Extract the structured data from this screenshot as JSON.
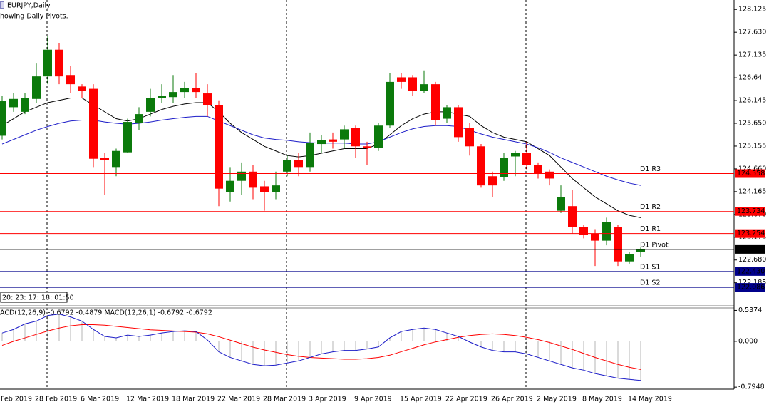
{
  "chart_data": [
    {
      "type": "candlestick",
      "title": "EURJPY,Daily",
      "subtitle": "howing Daily Pivots.",
      "countdown": "20: 23: 17: 18: 01:50",
      "categories": [
        "Feb 2019",
        null,
        null,
        "28 Feb 2019",
        null,
        null,
        null,
        "6 Mar 2019",
        null,
        null,
        null,
        "12 Mar 2019",
        null,
        null,
        null,
        "18 Mar 2019",
        null,
        null,
        null,
        "22 Mar 2019",
        null,
        null,
        null,
        "28 Mar 2019",
        null,
        null,
        null,
        "3 Apr 2019",
        null,
        null,
        null,
        "9 Apr 2019",
        null,
        null,
        null,
        "15 Apr 2019",
        null,
        null,
        null,
        "22 Apr 2019",
        null,
        null,
        null,
        "26 Apr 2019",
        null,
        null,
        null,
        "2 May 2019",
        null,
        null,
        null,
        "8 May 2019",
        null,
        null,
        null,
        "14 May 2019",
        null
      ],
      "open": [
        125.38,
        126.0,
        125.9,
        126.18,
        126.67,
        127.25,
        126.7,
        126.45,
        126.4,
        124.9,
        124.7,
        125.02,
        125.65,
        125.9,
        126.2,
        126.22,
        126.33,
        126.42,
        126.3,
        126.05,
        124.15,
        124.4,
        124.6,
        124.28,
        124.15,
        124.6,
        124.85,
        124.7,
        125.2,
        125.3,
        125.3,
        125.55,
        125.15,
        125.12,
        125.6,
        126.65,
        126.65,
        126.35,
        126.5,
        125.75,
        126.0,
        125.55,
        125.15,
        124.5,
        124.48,
        124.93,
        125.0,
        124.75,
        124.6,
        123.75,
        123.85,
        123.4,
        123.25,
        123.1,
        123.4,
        122.65,
        122.85
      ],
      "high": [
        126.25,
        126.3,
        126.3,
        126.95,
        127.55,
        127.4,
        126.9,
        126.5,
        126.5,
        125.0,
        125.1,
        125.75,
        126.0,
        126.4,
        126.5,
        126.7,
        126.55,
        126.75,
        126.5,
        126.15,
        124.7,
        124.8,
        124.75,
        124.4,
        124.6,
        124.95,
        125.0,
        125.45,
        125.4,
        125.45,
        125.6,
        125.6,
        125.25,
        125.65,
        126.75,
        126.75,
        126.7,
        126.8,
        126.55,
        126.05,
        126.05,
        125.65,
        125.2,
        124.6,
        125.0,
        125.05,
        125.25,
        124.8,
        124.65,
        124.3,
        124.2,
        123.45,
        123.35,
        123.6,
        123.45,
        122.85,
        122.95
      ],
      "low": [
        125.3,
        125.9,
        125.85,
        126.1,
        126.5,
        126.5,
        126.3,
        126.2,
        124.7,
        124.1,
        124.5,
        125.0,
        125.5,
        125.8,
        126.1,
        126.1,
        126.2,
        126.2,
        125.8,
        123.85,
        123.95,
        124.1,
        124.0,
        123.75,
        124.0,
        124.5,
        124.5,
        124.6,
        125.0,
        125.1,
        125.1,
        124.9,
        124.75,
        125.05,
        125.55,
        126.4,
        126.25,
        126.3,
        125.6,
        125.65,
        125.25,
        124.95,
        124.25,
        124.05,
        124.4,
        124.5,
        124.65,
        124.45,
        124.3,
        123.7,
        123.25,
        123.15,
        122.55,
        123.0,
        122.55,
        122.6,
        122.75
      ],
      "close": [
        126.13,
        126.18,
        126.2,
        126.67,
        127.25,
        126.67,
        126.5,
        126.35,
        124.88,
        124.85,
        125.05,
        125.68,
        125.85,
        126.2,
        126.25,
        126.33,
        126.42,
        126.33,
        126.05,
        124.23,
        124.4,
        124.6,
        124.25,
        124.15,
        124.3,
        124.85,
        124.7,
        125.22,
        125.28,
        125.25,
        125.52,
        125.15,
        125.12,
        125.6,
        126.55,
        126.55,
        126.35,
        126.5,
        125.72,
        126.0,
        125.35,
        125.15,
        124.3,
        124.3,
        124.9,
        125.0,
        124.75,
        124.55,
        124.45,
        124.05,
        123.4,
        123.22,
        123.1,
        123.5,
        122.65,
        122.8,
        122.91
      ],
      "up_color": "#0b7a0b",
      "down_color": "#ff0000",
      "lines": [
        {
          "color": "#000000",
          "values": [
            125.6,
            125.75,
            125.9,
            126.0,
            126.1,
            126.15,
            126.2,
            126.2,
            126.05,
            125.9,
            125.75,
            125.7,
            125.75,
            125.85,
            125.95,
            126.02,
            126.07,
            126.1,
            126.1,
            125.9,
            125.65,
            125.45,
            125.3,
            125.15,
            125.05,
            124.95,
            124.92,
            124.95,
            125.0,
            125.05,
            125.1,
            125.1,
            125.1,
            125.2,
            125.4,
            125.6,
            125.75,
            125.85,
            125.9,
            125.9,
            125.85,
            125.8,
            125.6,
            125.45,
            125.35,
            125.3,
            125.25,
            125.1,
            124.95,
            124.7,
            124.45,
            124.25,
            124.05,
            123.9,
            123.75,
            123.65,
            123.6
          ]
        },
        {
          "color": "#1c1cc8",
          "values": [
            125.2,
            125.3,
            125.4,
            125.5,
            125.58,
            125.65,
            125.7,
            125.72,
            125.72,
            125.68,
            125.65,
            125.63,
            125.65,
            125.68,
            125.72,
            125.75,
            125.78,
            125.8,
            125.8,
            125.7,
            125.6,
            125.5,
            125.4,
            125.33,
            125.3,
            125.28,
            125.25,
            125.23,
            125.22,
            125.22,
            125.22,
            125.2,
            125.2,
            125.25,
            125.35,
            125.45,
            125.53,
            125.58,
            125.6,
            125.6,
            125.58,
            125.5,
            125.42,
            125.35,
            125.3,
            125.25,
            125.2,
            125.12,
            125.02,
            124.9,
            124.8,
            124.7,
            124.6,
            124.5,
            124.42,
            124.35,
            124.3
          ]
        }
      ],
      "pivots": {
        "names": [
          "D1 R3",
          "D1 R2",
          "D1 R1",
          "D1 Pivot",
          "D1 S1",
          "D1 S2"
        ],
        "values": [
          124.558,
          123.734,
          123.254,
          122.91,
          122.43,
          122.086
        ],
        "value_labels": [
          "124.558",
          "123.734",
          "123.254",
          "122.910",
          "122.430",
          "122.086"
        ],
        "colors": [
          "#ff0000",
          "#ff0000",
          "#ff0000",
          "#000000",
          "#00008b",
          "#00008b"
        ]
      },
      "ylim": [
        121.7,
        128.33
      ],
      "yticks": [
        128.125,
        {
          "value": 127.63,
          "label": "127.630"
        },
        127.135,
        126.64,
        126.145,
        {
          "value": 125.65,
          "label": "125.650"
        },
        125.155,
        {
          "value": 124.66,
          "label": "124.660"
        },
        124.165,
        {
          "value": 123.67,
          "label": "123.670"
        },
        123.175,
        {
          "value": 122.68,
          "label": "122.680"
        },
        122.185
      ]
    },
    {
      "type": "macd",
      "title": "ACD(12,26,9) -0.6792 -0.4879 MACD(12,26,1) -0.6792 -0.6792",
      "series": [
        {
          "style": "histogram",
          "color": "#b4b4b4",
          "values": [
            0.145,
            0.206,
            0.303,
            0.351,
            0.448,
            0.472,
            0.424,
            0.351,
            0.206,
            0.085,
            0.061,
            0.109,
            0.085,
            0.109,
            0.145,
            0.17,
            0.182,
            0.17,
            0.024,
            -0.182,
            -0.279,
            -0.339,
            -0.4,
            -0.424,
            -0.412,
            -0.375,
            -0.339,
            -0.279,
            -0.218,
            -0.182,
            -0.157,
            -0.157,
            -0.133,
            -0.097,
            0.061,
            0.17,
            0.206,
            0.23,
            0.206,
            0.145,
            0.085,
            -0.012,
            -0.097,
            -0.157,
            -0.182,
            -0.182,
            -0.218,
            -0.279,
            -0.339,
            -0.4,
            -0.46,
            -0.5,
            -0.56,
            -0.6,
            -0.64,
            -0.66,
            -0.6792
          ]
        },
        {
          "style": "line",
          "color": "#ff0000",
          "values": [
            -0.07,
            0.0,
            0.06,
            0.12,
            0.18,
            0.23,
            0.27,
            0.29,
            0.29,
            0.28,
            0.26,
            0.24,
            0.22,
            0.2,
            0.19,
            0.18,
            0.17,
            0.16,
            0.13,
            0.08,
            0.02,
            -0.04,
            -0.1,
            -0.15,
            -0.19,
            -0.23,
            -0.26,
            -0.28,
            -0.29,
            -0.3,
            -0.31,
            -0.31,
            -0.3,
            -0.28,
            -0.24,
            -0.18,
            -0.12,
            -0.06,
            -0.01,
            0.03,
            0.07,
            0.1,
            0.12,
            0.13,
            0.12,
            0.1,
            0.07,
            0.03,
            -0.02,
            -0.08,
            -0.14,
            -0.21,
            -0.28,
            -0.34,
            -0.4,
            -0.45,
            -0.4879
          ]
        },
        {
          "style": "line",
          "color": "#1c1cc8",
          "values": [
            0.145,
            0.206,
            0.303,
            0.351,
            0.448,
            0.472,
            0.424,
            0.351,
            0.206,
            0.085,
            0.061,
            0.109,
            0.085,
            0.109,
            0.145,
            0.17,
            0.182,
            0.17,
            0.024,
            -0.182,
            -0.279,
            -0.339,
            -0.4,
            -0.424,
            -0.412,
            -0.375,
            -0.339,
            -0.279,
            -0.218,
            -0.182,
            -0.157,
            -0.157,
            -0.133,
            -0.097,
            0.061,
            0.17,
            0.206,
            0.23,
            0.206,
            0.145,
            0.085,
            -0.012,
            -0.097,
            -0.157,
            -0.182,
            -0.182,
            -0.218,
            -0.279,
            -0.339,
            -0.4,
            -0.46,
            -0.5,
            -0.56,
            -0.6,
            -0.64,
            -0.66,
            -0.6792
          ]
        }
      ],
      "ylim": [
        -0.83,
        0.58
      ],
      "yticks": [
        0.5374,
        {
          "value": 0,
          "label": "0.000"
        },
        -0.7948
      ]
    }
  ]
}
